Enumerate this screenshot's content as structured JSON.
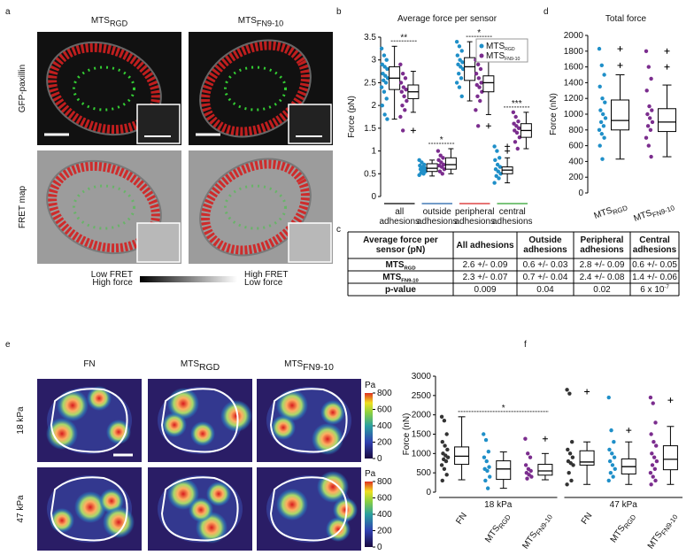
{
  "panel_labels": [
    "a",
    "b",
    "c",
    "d",
    "e",
    "f"
  ],
  "fret_images": {
    "columns": [
      {
        "name": "MTS",
        "sub": "RGD"
      },
      {
        "name": "MTS",
        "sub": "FN9-10"
      }
    ],
    "rows": [
      "GFP-paxillin",
      "FRET map"
    ],
    "scale": {
      "left": [
        "Low FRET",
        "High force"
      ],
      "right": [
        "High FRET",
        "Low force"
      ]
    }
  },
  "chart_data": [
    {
      "type": "box",
      "title": "Average force per sensor",
      "y_label": "Force (pN)",
      "ylim": [
        0,
        3.5
      ],
      "yticks": [
        0,
        0.5,
        1,
        1.5,
        2,
        2.5,
        3,
        3.5
      ],
      "legend": true,
      "categories": [
        [
          "all",
          "adhesions"
        ],
        [
          "outside",
          "adhesions"
        ],
        [
          "peripheral",
          "adhesions"
        ],
        [
          "central",
          "adhesions"
        ]
      ],
      "category_colors": [
        "#000000",
        "#1f5fa8",
        "#d62020",
        "#2ca02c"
      ],
      "significance": [
        "**",
        "*",
        "*",
        "***"
      ],
      "series": [
        {
          "name": "MTS",
          "sub": "RGD",
          "color": "#1f8fc8",
          "stats": [
            [
              1.7,
              2.35,
              2.6,
              2.85,
              3.3
            ],
            [
              0.45,
              0.55,
              0.62,
              0.72,
              0.8
            ],
            [
              2.1,
              2.55,
              2.85,
              3.05,
              3.4
            ],
            [
              0.3,
              0.5,
              0.58,
              0.65,
              0.85
            ]
          ],
          "outliers": [
            [],
            [],
            [],
            [
              1.0,
              1.1
            ]
          ],
          "points": [
            [
              3.25,
              3.1,
              3.0,
              2.9,
              2.85,
              2.8,
              2.7,
              2.65,
              2.6,
              2.55,
              2.5,
              2.4,
              2.3,
              2.15,
              2.0,
              1.8,
              1.7
            ],
            [
              0.8,
              0.75,
              0.7,
              0.68,
              0.65,
              0.62,
              0.6,
              0.58,
              0.55,
              0.52,
              0.5,
              0.47
            ],
            [
              3.4,
              3.3,
              3.2,
              3.1,
              3.0,
              2.95,
              2.9,
              2.85,
              2.8,
              2.7,
              2.6,
              2.5,
              2.4,
              2.2
            ],
            [
              1.1,
              1.0,
              0.85,
              0.8,
              0.7,
              0.65,
              0.6,
              0.55,
              0.5,
              0.45,
              0.4,
              0.3
            ]
          ]
        },
        {
          "name": "MTS",
          "sub": "FN9-10",
          "color": "#7b2d8e",
          "stats": [
            [
              1.85,
              2.15,
              2.3,
              2.45,
              2.75
            ],
            [
              0.5,
              0.6,
              0.7,
              0.85,
              1.05
            ],
            [
              1.8,
              2.3,
              2.5,
              2.65,
              3.0
            ],
            [
              1.05,
              1.3,
              1.45,
              1.6,
              1.85
            ]
          ],
          "outliers": [
            [
              1.45
            ],
            [],
            [
              1.55
            ],
            []
          ],
          "points": [
            [
              2.9,
              2.7,
              2.6,
              2.5,
              2.4,
              2.35,
              2.3,
              2.2,
              2.1,
              2.0,
              1.9,
              1.75,
              1.45
            ],
            [
              1.0,
              0.9,
              0.85,
              0.8,
              0.75,
              0.7,
              0.68,
              0.65,
              0.6,
              0.55,
              0.5
            ],
            [
              3.0,
              2.9,
              2.8,
              2.7,
              2.6,
              2.5,
              2.45,
              2.4,
              2.3,
              2.2,
              2.1,
              1.9,
              1.55
            ],
            [
              1.85,
              1.75,
              1.65,
              1.6,
              1.55,
              1.5,
              1.45,
              1.4,
              1.3,
              1.2,
              1.05
            ]
          ]
        }
      ]
    },
    {
      "type": "box",
      "title": "Total force",
      "y_label": "Force (nN)",
      "ylim": [
        0,
        2000
      ],
      "yticks": [
        0,
        200,
        400,
        600,
        800,
        1000,
        1200,
        1400,
        1600,
        1800,
        2000
      ],
      "categories": [
        null
      ],
      "series": [
        {
          "name": "MTS",
          "sub": "RGD",
          "color": "#1f8fc8",
          "stats": [
            [
              430,
              800,
              920,
              1180,
              1500
            ]
          ],
          "outliers": [
            [
              1620,
              1830
            ]
          ],
          "points": [
            [
              1830,
              1620,
              1500,
              1350,
              1200,
              1150,
              1050,
              1000,
              950,
              900,
              850,
              800,
              750,
              700,
              600,
              430
            ]
          ]
        },
        {
          "name": "MTS",
          "sub": "FN9-10",
          "color": "#7b2d8e",
          "stats": [
            [
              460,
              780,
              900,
              1070,
              1370
            ]
          ],
          "outliers": [
            [
              1600,
              1800
            ]
          ],
          "points": [
            [
              1800,
              1600,
              1450,
              1300,
              1100,
              1050,
              1000,
              950,
              900,
              850,
              800,
              700,
              600,
              460
            ]
          ]
        }
      ]
    },
    {
      "type": "box",
      "y_label": "Force (nN)",
      "ylim": [
        0,
        3000
      ],
      "yticks": [
        0,
        500,
        1000,
        1500,
        2000,
        2500,
        3000
      ],
      "categories": [
        "18 kPa",
        "47 kPa"
      ],
      "significance": [
        "*",
        null
      ],
      "series": [
        {
          "name": "FN",
          "color": "#333333",
          "stats": [
            [
              320,
              720,
              930,
              1170,
              1950
            ],
            [
              200,
              700,
              780,
              1070,
              1300
            ]
          ],
          "outliers": [
            [],
            [
              2600
            ]
          ],
          "points": [
            [
              1950,
              1850,
              1500,
              1300,
              1200,
              1100,
              1000,
              950,
              900,
              850,
              800,
              700,
              600,
              450,
              300
            ],
            [
              2650,
              2550,
              1300,
              1100,
              1000,
              900,
              800,
              750,
              700,
              500,
              300,
              200
            ]
          ]
        },
        {
          "name": "MTS",
          "sub": "RGD",
          "color": "#1f8fc8",
          "stats": [
            [
              100,
              330,
              600,
              810,
              1040
            ],
            [
              200,
              470,
              660,
              860,
              1300
            ]
          ],
          "outliers": [
            [],
            [
              1600
            ]
          ],
          "points": [
            [
              1500,
              1350,
              1050,
              900,
              800,
              650,
              600,
              550,
              400,
              300,
              100
            ],
            [
              2450,
              1600,
              1300,
              1100,
              1000,
              900,
              800,
              700,
              600,
              500,
              400,
              300
            ]
          ]
        },
        {
          "name": "MTS",
          "sub": "FN9-10",
          "color": "#7b2d8e",
          "stats": [
            [
              320,
              440,
              550,
              720,
              1000
            ],
            [
              200,
              580,
              850,
              1200,
              1700
            ]
          ],
          "outliers": [
            [
              1380
            ],
            [
              2380
            ]
          ],
          "points": [
            [
              1380,
              1000,
              900,
              700,
              600,
              550,
              500,
              450,
              400,
              350
            ],
            [
              2450,
              2300,
              1800,
              1500,
              1300,
              1200,
              1000,
              900,
              800,
              700,
              600,
              500,
              400,
              300,
              200
            ]
          ]
        }
      ]
    }
  ],
  "table": {
    "header": [
      [
        "Average force per",
        "sensor (pN)"
      ],
      [
        "All adhesions"
      ],
      [
        "Outside",
        "adhesions"
      ],
      [
        "Peripheral",
        "adhesions"
      ],
      [
        "Central",
        "adhesions"
      ]
    ],
    "rows": [
      {
        "label": "MTS",
        "label_sub": "RGD",
        "cells": [
          "2.6 +/- 0.09",
          "0.6 +/- 0.03",
          "2.8 +/- 0.09",
          "0.6 +/- 0.05"
        ]
      },
      {
        "label": "MTS",
        "label_sub": "FN9-10",
        "cells": [
          "2.3 +/- 0.07",
          "0.7 +/- 0.04",
          "2.4 +/- 0.08",
          "1.4 +/- 0.06"
        ]
      },
      {
        "label": "p-value",
        "cells": [
          "0.009",
          "0.04",
          "0.02",
          {
            "base": "6 x 10",
            "sup": "-7"
          }
        ]
      }
    ]
  },
  "heatmaps": {
    "columns": [
      {
        "name": "FN"
      },
      {
        "name": "MTS",
        "sub": "RGD"
      },
      {
        "name": "MTS",
        "sub": "FN9-10"
      }
    ],
    "rows": [
      "18 kPa",
      "47 kPa"
    ],
    "colorbar": {
      "label": "Pa",
      "lim": [
        0,
        800
      ],
      "ticks": [
        0,
        200,
        400,
        600,
        800
      ]
    }
  }
}
